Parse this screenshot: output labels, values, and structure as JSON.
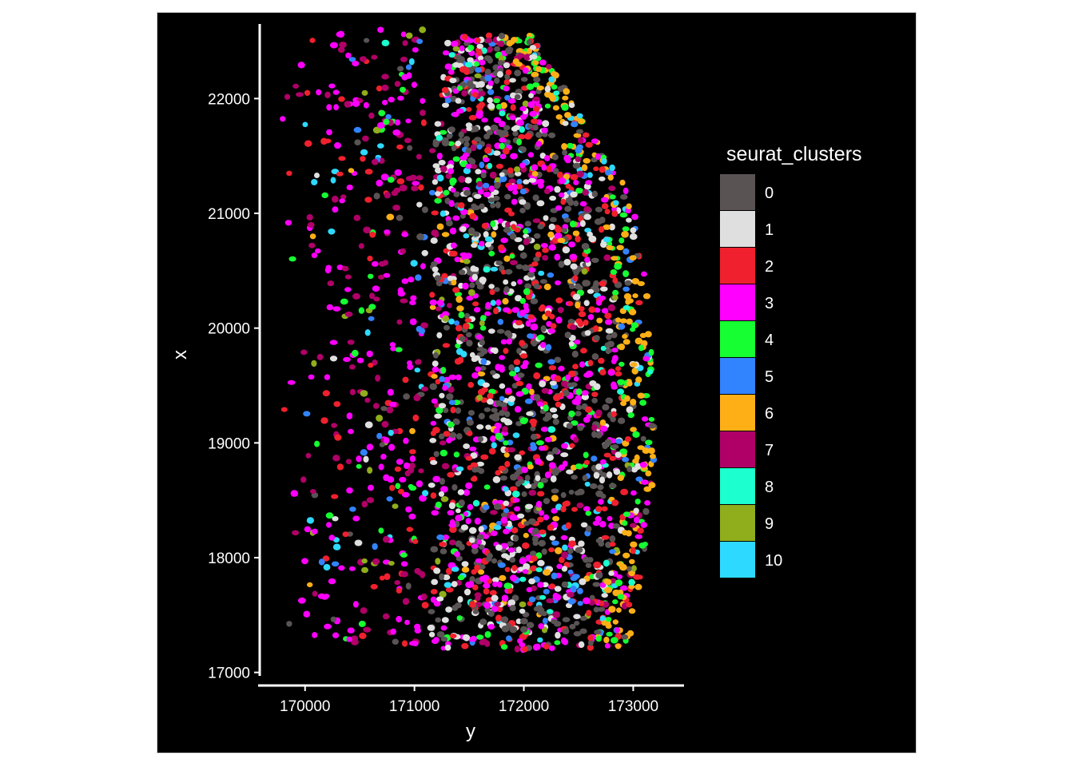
{
  "chart_data": {
    "type": "scatter",
    "xlabel": "y",
    "ylabel": "x",
    "xlim": [
      169600,
      173450
    ],
    "ylim": [
      16900,
      22650
    ],
    "x_ticks": [
      170000,
      171000,
      172000,
      173000
    ],
    "y_ticks": [
      17000,
      18000,
      19000,
      20000,
      21000,
      22000
    ],
    "grid": false,
    "background": "#000000",
    "legend": {
      "title": "seurat_clusters",
      "position": "right",
      "entries": [
        {
          "label": "0",
          "color": "#595354"
        },
        {
          "label": "1",
          "color": "#e0dfe0"
        },
        {
          "label": "2",
          "color": "#f0202e"
        },
        {
          "label": "3",
          "color": "#ff00ff"
        },
        {
          "label": "4",
          "color": "#16ff32"
        },
        {
          "label": "5",
          "color": "#3283fe"
        },
        {
          "label": "6",
          "color": "#feaf16"
        },
        {
          "label": "7",
          "color": "#b00068"
        },
        {
          "label": "8",
          "color": "#1cffce"
        },
        {
          "label": "9",
          "color": "#90ad1c"
        },
        {
          "label": "10",
          "color": "#2ed9ff"
        }
      ]
    },
    "series_extent": {
      "tissue_region": {
        "y_range": [
          171100,
          173250
        ],
        "x_range": [
          17200,
          22550
        ]
      },
      "scattered_region": {
        "y_range": [
          169780,
          171100
        ],
        "x_range": [
          17200,
          22600
        ]
      }
    }
  }
}
